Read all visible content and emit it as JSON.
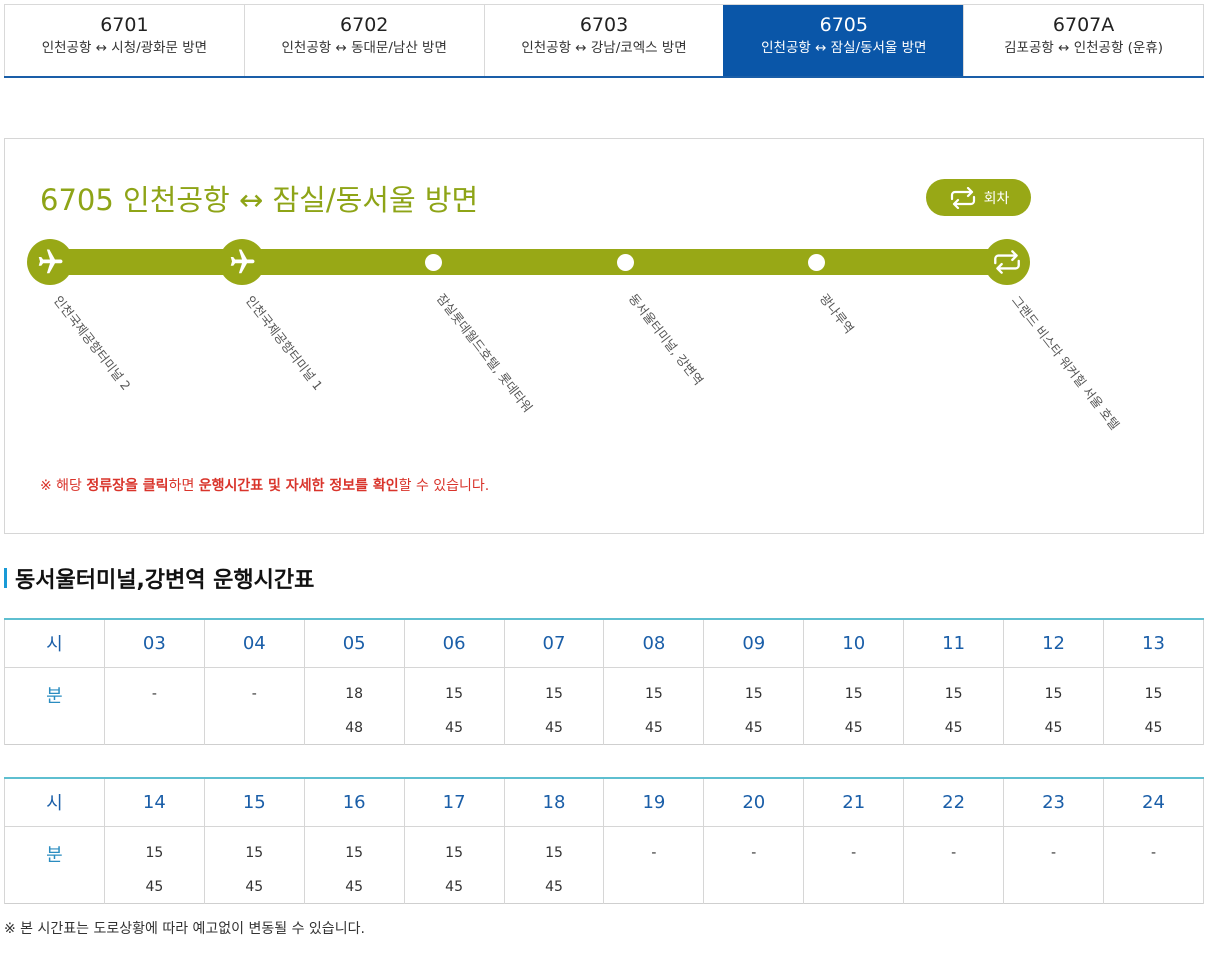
{
  "tabs": [
    {
      "number": "6701",
      "dest": "인천공항 ↔ 시청/광화문 방면",
      "active": false
    },
    {
      "number": "6702",
      "dest": "인천공항 ↔ 동대문/남산 방면",
      "active": false
    },
    {
      "number": "6703",
      "dest": "인천공항 ↔ 강남/코엑스 방면",
      "active": false
    },
    {
      "number": "6705",
      "dest": "인천공항 ↔ 잠실/동서울 방면",
      "active": true
    },
    {
      "number": "6707A",
      "dest": "김포공항 ↔ 인천공항 (운휴)",
      "active": false
    }
  ],
  "route": {
    "title": "6705 인천공항 ↔ 잠실/동서울 방면",
    "turn_label": "회차",
    "colors": {
      "accent": "#98a816",
      "tab_active": "#0a56a8",
      "notice": "#d9342b"
    },
    "stops": [
      {
        "name": "인천국제공항터미널 2",
        "icon": "airplane-icon"
      },
      {
        "name": "인천국제공항터미널 1",
        "icon": "airplane-icon"
      },
      {
        "name": "잠실롯데월드호텔, 롯데타워",
        "icon": "dot"
      },
      {
        "name": "동서울터미널, 강변역",
        "icon": "dot"
      },
      {
        "name": "광나루역",
        "icon": "dot"
      },
      {
        "name": "그랜드 비스타 워커힐 서울 호텔",
        "icon": "turnaround-icon"
      }
    ],
    "notice": {
      "p1": "※ 해당 ",
      "b1": "정류장을 클릭",
      "p2": "하면 ",
      "b2": "운행시간표 및 자세한 정보를 확인",
      "p3": "할 수 있습니다."
    }
  },
  "timetable": {
    "title": "동서울터미널,강변역 운행시간표",
    "hour_label": "시",
    "minute_label": "분",
    "tables": [
      {
        "hours": [
          "03",
          "04",
          "05",
          "06",
          "07",
          "08",
          "09",
          "10",
          "11",
          "12",
          "13"
        ],
        "minutes": [
          [
            "-"
          ],
          [
            "-"
          ],
          [
            "18",
            "48"
          ],
          [
            "15",
            "45"
          ],
          [
            "15",
            "45"
          ],
          [
            "15",
            "45"
          ],
          [
            "15",
            "45"
          ],
          [
            "15",
            "45"
          ],
          [
            "15",
            "45"
          ],
          [
            "15",
            "45"
          ],
          [
            "15",
            "45"
          ]
        ]
      },
      {
        "hours": [
          "14",
          "15",
          "16",
          "17",
          "18",
          "19",
          "20",
          "21",
          "22",
          "23",
          "24"
        ],
        "minutes": [
          [
            "15",
            "45"
          ],
          [
            "15",
            "45"
          ],
          [
            "15",
            "45"
          ],
          [
            "15",
            "45"
          ],
          [
            "15",
            "45"
          ],
          [
            "-"
          ],
          [
            "-"
          ],
          [
            "-"
          ],
          [
            "-"
          ],
          [
            "-"
          ],
          [
            "-"
          ]
        ]
      }
    ],
    "footnote": "※ 본 시간표는 도로상황에 따라 예고없이 변동될 수 있습니다."
  }
}
